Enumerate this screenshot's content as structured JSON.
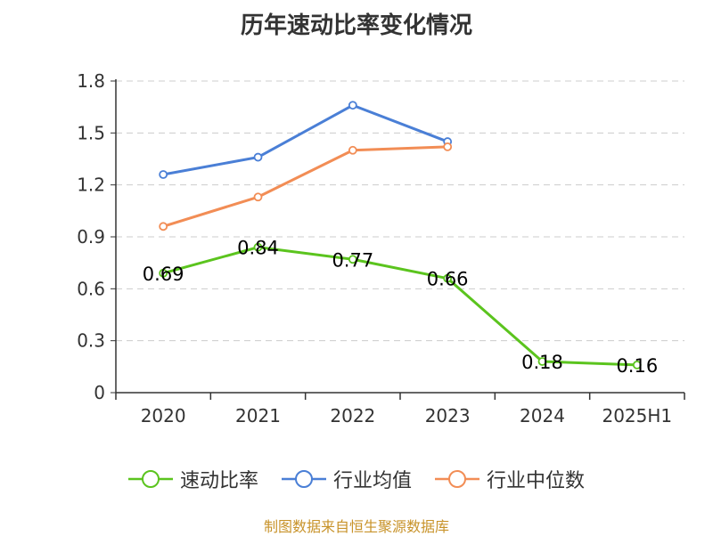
{
  "title": "历年速动比率变化情况",
  "source": "制图数据来自恒生聚源数据库",
  "chart_data": {
    "type": "line",
    "categories": [
      "2020",
      "2021",
      "2022",
      "2023",
      "2024",
      "2025H1"
    ],
    "ylim": [
      0,
      1.8
    ],
    "yticks": [
      "0",
      "0.3",
      "0.6",
      "0.9",
      "1.2",
      "1.5",
      "1.8"
    ],
    "grid": true,
    "legend_position": "bottom",
    "series": [
      {
        "name": "速动比率",
        "color": "#5bc41e",
        "values": [
          0.69,
          0.84,
          0.77,
          0.66,
          0.18,
          0.16
        ],
        "labels": [
          "0.69",
          "0.84",
          "0.77",
          "0.66",
          "0.18",
          "0.16"
        ]
      },
      {
        "name": "行业均值",
        "color": "#4a7fd6",
        "values": [
          1.26,
          1.36,
          1.66,
          1.45,
          null,
          null
        ]
      },
      {
        "name": "行业中位数",
        "color": "#f28d55",
        "values": [
          0.96,
          1.13,
          1.4,
          1.42,
          null,
          null
        ]
      }
    ]
  }
}
